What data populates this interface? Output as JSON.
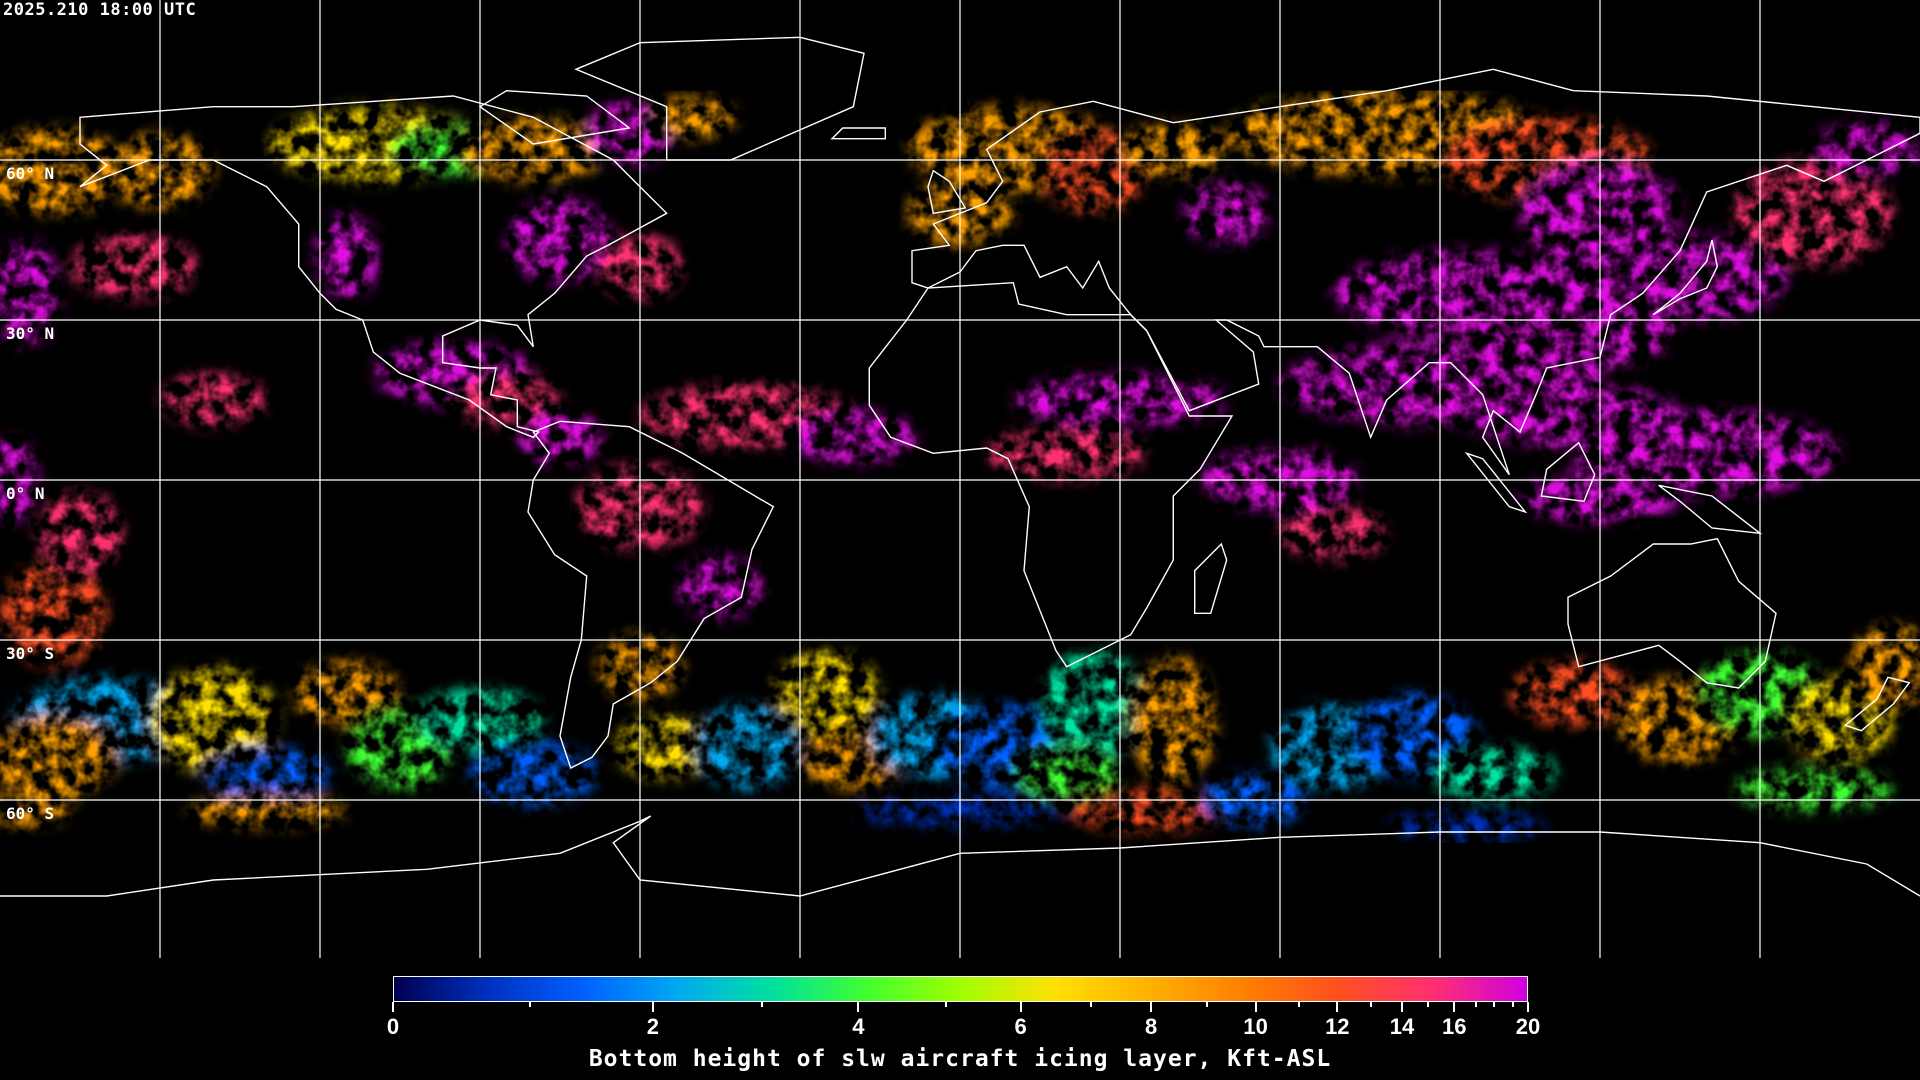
{
  "header": {
    "timestamp": "2025.210 18:00 UTC"
  },
  "map": {
    "projection": "equirectangular",
    "graticule_step_deg": 30,
    "lat_labels": [
      "60° N",
      "30° N",
      "0° N",
      "30° S",
      "60° S"
    ],
    "coastline_color": "#ffffff",
    "grid_color": "#ffffff"
  },
  "colorbar": {
    "title": "Bottom height of slw aircraft icing layer, Kft-ASL",
    "min": 0,
    "max": 20,
    "major_ticks": [
      "0",
      "2",
      "4",
      "6",
      "8",
      "10",
      "12",
      "14",
      "16",
      "20"
    ],
    "minor_ticks": [
      1,
      3,
      5,
      7,
      9,
      11,
      13,
      15,
      17,
      18,
      19
    ],
    "colors": [
      "#000050",
      "#0030c0",
      "#0060ff",
      "#00a8f0",
      "#00e0a0",
      "#40ff30",
      "#a0ff00",
      "#ffe000",
      "#ffb000",
      "#ff8000",
      "#ff5020",
      "#ff3070",
      "#d000e0"
    ]
  }
}
